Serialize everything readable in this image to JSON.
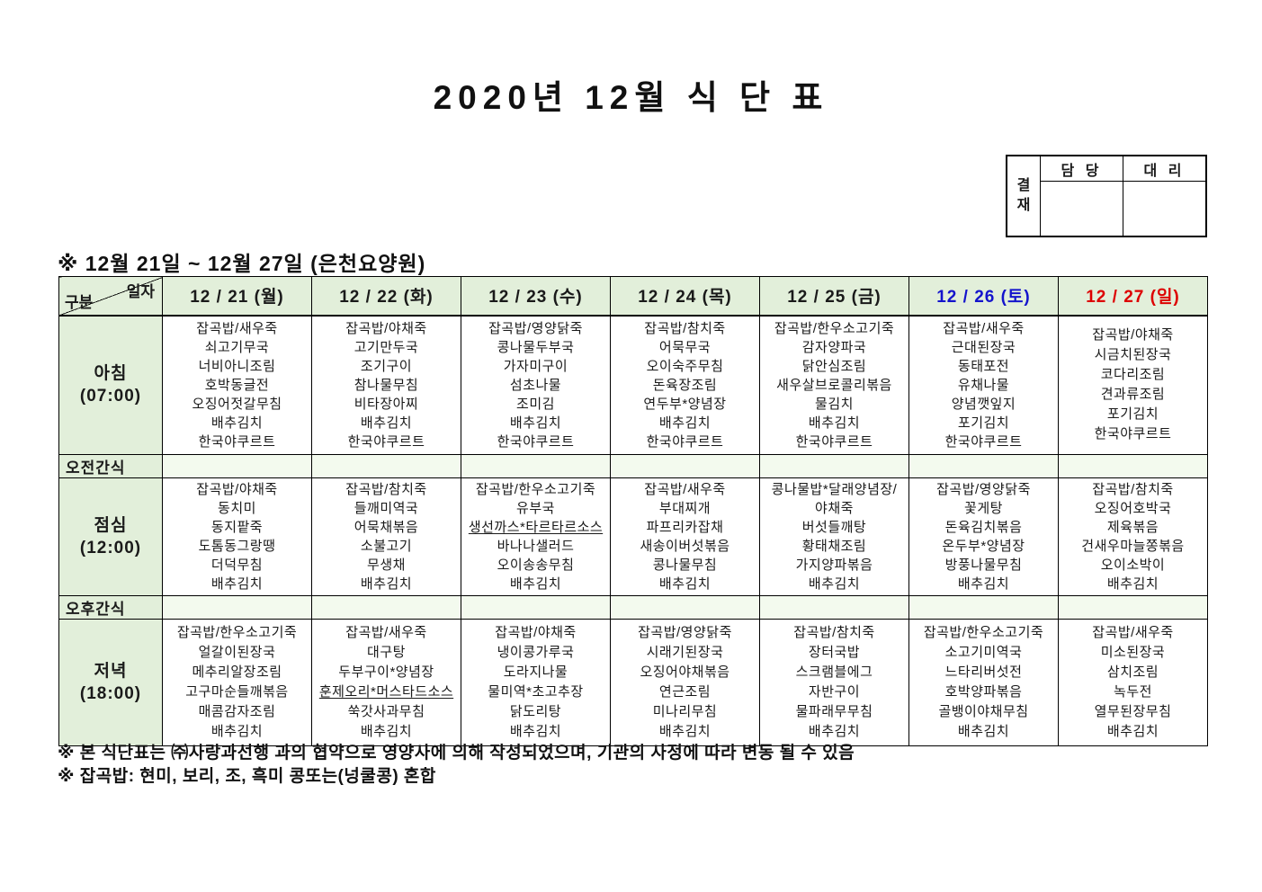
{
  "title": "2020년 12월 식 단 표",
  "approval": {
    "stamp_label": "결재",
    "columns": [
      "담 당",
      "대 리"
    ]
  },
  "subtitle": "※ 12월 21일 ~ 12월 27일 (은천요양원)",
  "table": {
    "corner": {
      "top_right": "일자",
      "bottom_left": "구분"
    },
    "days": [
      {
        "label": "12 / 21 (월)",
        "color": "#1a1a1a"
      },
      {
        "label": "12 / 22 (화)",
        "color": "#1a1a1a"
      },
      {
        "label": "12 / 23 (수)",
        "color": "#1a1a1a"
      },
      {
        "label": "12 / 24 (목)",
        "color": "#1a1a1a"
      },
      {
        "label": "12 / 25 (금)",
        "color": "#1a1a1a"
      },
      {
        "label": "12 / 26 (토)",
        "color": "#1414cc"
      },
      {
        "label": "12 / 27 (일)",
        "color": "#dd0000"
      }
    ],
    "sections": [
      {
        "type": "meal",
        "label": "아침",
        "time": "(07:00)",
        "menus": [
          [
            "잡곡밥/새우죽",
            "쇠고기무국",
            "너비아니조림",
            "호박동글전",
            "오징어젓갈무침",
            "배추김치",
            "한국야쿠르트"
          ],
          [
            "잡곡밥/야채죽",
            "고기만두국",
            "조기구이",
            "참나물무침",
            "비타장아찌",
            "배추김치",
            "한국야쿠르트"
          ],
          [
            "잡곡밥/영양닭죽",
            "콩나물두부국",
            "가자미구이",
            "섬초나물",
            "조미김",
            "배추김치",
            "한국야쿠르트"
          ],
          [
            "잡곡밥/참치죽",
            "어묵무국",
            "오이숙주무침",
            "돈육장조림",
            "연두부*양념장",
            "배추김치",
            "한국야쿠르트"
          ],
          [
            "잡곡밥/한우소고기죽",
            "감자양파국",
            "닭안심조림",
            "새우살브로콜리볶음",
            "물김치",
            "배추김치",
            "한국야쿠르트"
          ],
          [
            "잡곡밥/새우죽",
            "근대된장국",
            "동태포전",
            "유채나물",
            "양념깻잎지",
            "포기김치",
            "한국야쿠르트"
          ],
          [
            "잡곡밥/야채죽",
            "시금치된장국",
            "코다리조림",
            "견과류조림",
            "포기김치",
            "한국야쿠르트"
          ]
        ]
      },
      {
        "type": "snack",
        "label": "오전간식"
      },
      {
        "type": "meal",
        "label": "점심",
        "time": "(12:00)",
        "menus": [
          [
            "잡곡밥/야채죽",
            "동치미",
            "동지팥죽",
            "도톰동그랑땡",
            "더덕무침",
            "배추김치"
          ],
          [
            "잡곡밥/참치죽",
            "들깨미역국",
            "어묵채볶음",
            "소불고기",
            "무생채",
            "배추김치"
          ],
          [
            "잡곡밥/한우소고기죽",
            "유부국",
            "생선까스*타르타르소스",
            "바나나샐러드",
            "오이송송무침",
            "배추김치"
          ],
          [
            "잡곡밥/새우죽",
            "부대찌개",
            "파프리카잡채",
            "새송이버섯볶음",
            "콩나물무침",
            "배추김치"
          ],
          [
            "콩나물밥*달래양념장/",
            "야채죽",
            "버섯들깨탕",
            "황태채조림",
            "가지양파볶음",
            "배추김치"
          ],
          [
            "잡곡밥/영양닭죽",
            "꽃게탕",
            "돈육김치볶음",
            "온두부*양념장",
            "방풍나물무침",
            "배추김치"
          ],
          [
            "잡곡밥/참치죽",
            "오징어호박국",
            "제육볶음",
            "건새우마늘쫑볶음",
            "오이소박이",
            "배추김치"
          ]
        ]
      },
      {
        "type": "snack",
        "label": "오후간식"
      },
      {
        "type": "meal",
        "label": "저녁",
        "time": "(18:00)",
        "menus": [
          [
            "잡곡밥/한우소고기죽",
            "얼갈이된장국",
            "메추리알장조림",
            "고구마순들깨볶음",
            "매콤감자조림",
            "배추김치"
          ],
          [
            "잡곡밥/새우죽",
            "대구탕",
            "두부구이*양념장",
            "훈제오리*머스타드소스",
            "쑥갓사과무침",
            "배추김치"
          ],
          [
            "잡곡밥/야채죽",
            "냉이콩가루국",
            "도라지나물",
            "물미역*초고추장",
            "닭도리탕",
            "배추김치"
          ],
          [
            "잡곡밥/영양닭죽",
            "시래기된장국",
            "오징어야채볶음",
            "연근조림",
            "미나리무침",
            "배추김치"
          ],
          [
            "잡곡밥/참치죽",
            "장터국밥",
            "스크램블에그",
            "자반구이",
            "물파래무무침",
            "배추김치"
          ],
          [
            "잡곡밥/한우소고기죽",
            "소고기미역국",
            "느타리버섯전",
            "호박양파볶음",
            "골뱅이야채무침",
            "배추김치"
          ],
          [
            "잡곡밥/새우죽",
            "미소된장국",
            "삼치조림",
            "녹두전",
            "열무된장무침",
            "배추김치"
          ]
        ]
      }
    ],
    "underlined_items": [
      "생선까스*타르타르소스",
      "훈제오리*머스타드소스"
    ]
  },
  "notes": [
    "※ 본 식단표는 ㈜사랑과선행 과의 협약으로 영양사에 의해 작성되었으며, 기관의 사정에 따라 변동 될 수 있음",
    "※ 잡곡밥: 현미, 보리, 조, 흑미 콩또는(넝쿨콩) 혼합"
  ],
  "colors": {
    "header_bg": "#e2efda",
    "snack_cell_bg": "#f3faee",
    "saturday_text": "#1414cc",
    "sunday_text": "#dd0000",
    "border": "#000000"
  }
}
